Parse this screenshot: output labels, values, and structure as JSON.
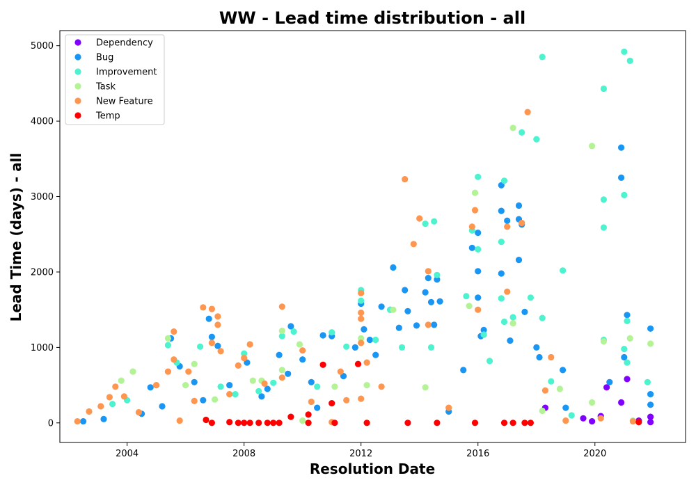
{
  "chart_data": {
    "type": "scatter",
    "title": "WW - Lead time distribution - all",
    "xlabel": "Resolution Date",
    "ylabel": "Lead Time (days) - all",
    "xlim": [
      2001.7,
      2023.1
    ],
    "ylim": [
      -260,
      5200
    ],
    "xticks": [
      2004,
      2008,
      2012,
      2016,
      2020
    ],
    "yticks": [
      0,
      1000,
      2000,
      3000,
      4000,
      5000
    ],
    "legend_position": "top-left",
    "grid": false,
    "series": [
      {
        "name": "Dependency",
        "color": "#8000ff",
        "points": [
          [
            2018.3,
            200
          ],
          [
            2019.6,
            60
          ],
          [
            2019.9,
            20
          ],
          [
            2020.2,
            90
          ],
          [
            2020.4,
            470
          ],
          [
            2020.9,
            270
          ],
          [
            2021.1,
            580
          ],
          [
            2021.9,
            80
          ],
          [
            2021.9,
            10
          ],
          [
            2021.5,
            30
          ]
        ]
      },
      {
        "name": "Bug",
        "color": "#1996f3",
        "points": [
          [
            2002.5,
            20
          ],
          [
            2003.2,
            50
          ],
          [
            2004.5,
            120
          ],
          [
            2004.8,
            470
          ],
          [
            2005.2,
            220
          ],
          [
            2005.5,
            1120
          ],
          [
            2005.8,
            750
          ],
          [
            2006.3,
            540
          ],
          [
            2006.6,
            300
          ],
          [
            2006.8,
            1380
          ],
          [
            2006.9,
            1140
          ],
          [
            2007.1,
            1020
          ],
          [
            2007.5,
            500
          ],
          [
            2008.1,
            800
          ],
          [
            2008.6,
            350
          ],
          [
            2009.2,
            900
          ],
          [
            2009.5,
            650
          ],
          [
            2009.6,
            1280
          ],
          [
            2010.0,
            840
          ],
          [
            2010.3,
            540
          ],
          [
            2010.7,
            1160
          ],
          [
            2011.0,
            1150
          ],
          [
            2011.4,
            620
          ],
          [
            2011.8,
            1000
          ],
          [
            2012.0,
            1580
          ],
          [
            2012.1,
            1240
          ],
          [
            2012.3,
            1100
          ],
          [
            2012.5,
            900
          ],
          [
            2012.7,
            1540
          ],
          [
            2013.0,
            1500
          ],
          [
            2013.1,
            2060
          ],
          [
            2013.3,
            1260
          ],
          [
            2013.5,
            1760
          ],
          [
            2013.6,
            1480
          ],
          [
            2013.9,
            1290
          ],
          [
            2014.2,
            1730
          ],
          [
            2014.3,
            1920
          ],
          [
            2014.4,
            1600
          ],
          [
            2014.5,
            1300
          ],
          [
            2014.6,
            1900
          ],
          [
            2014.7,
            1610
          ],
          [
            2015.5,
            700
          ],
          [
            2015.8,
            2320
          ],
          [
            2016.0,
            2520
          ],
          [
            2016.0,
            2010
          ],
          [
            2016.0,
            1660
          ],
          [
            2016.1,
            1150
          ],
          [
            2016.2,
            1230
          ],
          [
            2016.8,
            3150
          ],
          [
            2016.8,
            2810
          ],
          [
            2016.8,
            1980
          ],
          [
            2017.0,
            2680
          ],
          [
            2017.1,
            1090
          ],
          [
            2017.4,
            2880
          ],
          [
            2017.4,
            2700
          ],
          [
            2017.5,
            2630
          ],
          [
            2017.4,
            2160
          ],
          [
            2017.6,
            1470
          ],
          [
            2018.0,
            1000
          ],
          [
            2018.1,
            870
          ],
          [
            2018.9,
            700
          ],
          [
            2020.9,
            3650
          ],
          [
            2020.9,
            3250
          ],
          [
            2021.1,
            1430
          ],
          [
            2021.0,
            870
          ],
          [
            2021.9,
            1250
          ],
          [
            2021.9,
            380
          ],
          [
            2021.9,
            240
          ],
          [
            2020.5,
            540
          ],
          [
            2019.0,
            200
          ],
          [
            2010.5,
            200
          ],
          [
            2015.0,
            150
          ],
          [
            2008.8,
            450
          ]
        ]
      },
      {
        "name": "Improvement",
        "color": "#4df3ce",
        "points": [
          [
            2003.5,
            250
          ],
          [
            2004.0,
            300
          ],
          [
            2005.4,
            1030
          ],
          [
            2005.7,
            800
          ],
          [
            2006.5,
            1010
          ],
          [
            2007.2,
            480
          ],
          [
            2007.7,
            380
          ],
          [
            2008.0,
            920
          ],
          [
            2008.5,
            420
          ],
          [
            2009.0,
            530
          ],
          [
            2009.3,
            1150
          ],
          [
            2009.7,
            1210
          ],
          [
            2010.5,
            480
          ],
          [
            2011.0,
            1200
          ],
          [
            2011.5,
            1010
          ],
          [
            2012.0,
            1760
          ],
          [
            2012.0,
            1620
          ],
          [
            2012.5,
            1100
          ],
          [
            2013.0,
            1500
          ],
          [
            2013.4,
            1000
          ],
          [
            2014.2,
            2640
          ],
          [
            2014.5,
            2670
          ],
          [
            2014.6,
            1960
          ],
          [
            2014.4,
            1000
          ],
          [
            2015.6,
            1680
          ],
          [
            2015.8,
            2550
          ],
          [
            2016.0,
            3260
          ],
          [
            2016.0,
            2300
          ],
          [
            2016.2,
            1170
          ],
          [
            2016.9,
            3210
          ],
          [
            2016.8,
            2400
          ],
          [
            2016.8,
            1650
          ],
          [
            2016.9,
            1340
          ],
          [
            2017.2,
            1400
          ],
          [
            2017.5,
            3850
          ],
          [
            2018.0,
            3760
          ],
          [
            2018.2,
            4850
          ],
          [
            2018.2,
            1390
          ],
          [
            2018.9,
            2020
          ],
          [
            2020.3,
            4430
          ],
          [
            2020.3,
            2960
          ],
          [
            2020.3,
            2590
          ],
          [
            2020.3,
            1100
          ],
          [
            2021.0,
            4920
          ],
          [
            2021.2,
            4800
          ],
          [
            2021.0,
            3020
          ],
          [
            2021.1,
            1350
          ],
          [
            2021.1,
            800
          ],
          [
            2021.8,
            540
          ],
          [
            2021.0,
            980
          ],
          [
            2018.5,
            550
          ],
          [
            2017.8,
            1660
          ],
          [
            2019.2,
            100
          ],
          [
            2016.4,
            820
          ]
        ]
      },
      {
        "name": "Task",
        "color": "#b3f396",
        "points": [
          [
            2003.8,
            560
          ],
          [
            2004.2,
            680
          ],
          [
            2005.4,
            1120
          ],
          [
            2006.3,
            780
          ],
          [
            2006.0,
            500
          ],
          [
            2008.3,
            560
          ],
          [
            2008.6,
            560
          ],
          [
            2009.3,
            1220
          ],
          [
            2009.3,
            700
          ],
          [
            2009.9,
            1040
          ],
          [
            2011.1,
            480
          ],
          [
            2012.0,
            1120
          ],
          [
            2012.2,
            500
          ],
          [
            2013.1,
            1500
          ],
          [
            2014.2,
            470
          ],
          [
            2015.7,
            1550
          ],
          [
            2015.9,
            3050
          ],
          [
            2017.2,
            3910
          ],
          [
            2017.2,
            1320
          ],
          [
            2018.2,
            160
          ],
          [
            2018.8,
            450
          ],
          [
            2019.9,
            3670
          ],
          [
            2019.9,
            270
          ],
          [
            2020.3,
            1080
          ],
          [
            2021.2,
            1120
          ],
          [
            2021.9,
            1050
          ],
          [
            2021.3,
            30
          ],
          [
            2007.0,
            310
          ],
          [
            2010.0,
            30
          ]
        ]
      },
      {
        "name": "New Feature",
        "color": "#ff964f",
        "points": [
          [
            2002.7,
            150
          ],
          [
            2003.1,
            220
          ],
          [
            2003.4,
            340
          ],
          [
            2003.6,
            480
          ],
          [
            2003.9,
            350
          ],
          [
            2004.4,
            140
          ],
          [
            2005.0,
            500
          ],
          [
            2005.4,
            680
          ],
          [
            2005.6,
            840
          ],
          [
            2005.6,
            1210
          ],
          [
            2006.1,
            680
          ],
          [
            2006.3,
            290
          ],
          [
            2006.6,
            1530
          ],
          [
            2006.9,
            1510
          ],
          [
            2006.9,
            1060
          ],
          [
            2007.1,
            1410
          ],
          [
            2007.1,
            1300
          ],
          [
            2007.2,
            950
          ],
          [
            2007.5,
            380
          ],
          [
            2007.8,
            760
          ],
          [
            2008.0,
            860
          ],
          [
            2008.2,
            1040
          ],
          [
            2008.7,
            520
          ],
          [
            2009.3,
            1540
          ],
          [
            2009.3,
            600
          ],
          [
            2010.0,
            960
          ],
          [
            2010.3,
            280
          ],
          [
            2011.3,
            680
          ],
          [
            2011.5,
            300
          ],
          [
            2012.0,
            1720
          ],
          [
            2012.0,
            1460
          ],
          [
            2012.0,
            1380
          ],
          [
            2012.0,
            1060
          ],
          [
            2012.0,
            320
          ],
          [
            2012.2,
            800
          ],
          [
            2012.7,
            480
          ],
          [
            2013.5,
            3230
          ],
          [
            2013.8,
            2370
          ],
          [
            2014.0,
            2710
          ],
          [
            2014.3,
            2010
          ],
          [
            2014.3,
            1300
          ],
          [
            2015.0,
            200
          ],
          [
            2015.8,
            2600
          ],
          [
            2015.9,
            2820
          ],
          [
            2016.0,
            1500
          ],
          [
            2017.0,
            2600
          ],
          [
            2017.0,
            1740
          ],
          [
            2017.5,
            2650
          ],
          [
            2017.7,
            4120
          ],
          [
            2018.5,
            870
          ],
          [
            2018.3,
            430
          ],
          [
            2019.0,
            30
          ],
          [
            2020.2,
            60
          ],
          [
            2021.3,
            20
          ],
          [
            2002.3,
            20
          ],
          [
            2005.8,
            30
          ],
          [
            2011.0,
            10
          ]
        ]
      },
      {
        "name": "Temp",
        "color": "#ff0000",
        "points": [
          [
            2006.7,
            40
          ],
          [
            2006.9,
            0
          ],
          [
            2007.5,
            10
          ],
          [
            2007.8,
            0
          ],
          [
            2008.0,
            0
          ],
          [
            2008.2,
            0
          ],
          [
            2008.5,
            0
          ],
          [
            2008.8,
            0
          ],
          [
            2009.0,
            0
          ],
          [
            2009.2,
            0
          ],
          [
            2009.6,
            80
          ],
          [
            2010.2,
            110
          ],
          [
            2010.2,
            0
          ],
          [
            2010.7,
            770
          ],
          [
            2011.0,
            260
          ],
          [
            2011.1,
            0
          ],
          [
            2011.9,
            780
          ],
          [
            2012.2,
            0
          ],
          [
            2013.6,
            0
          ],
          [
            2014.6,
            0
          ],
          [
            2015.9,
            0
          ],
          [
            2016.9,
            0
          ],
          [
            2017.2,
            0
          ],
          [
            2017.6,
            0
          ],
          [
            2017.8,
            0
          ],
          [
            2021.5,
            10
          ]
        ]
      }
    ]
  }
}
